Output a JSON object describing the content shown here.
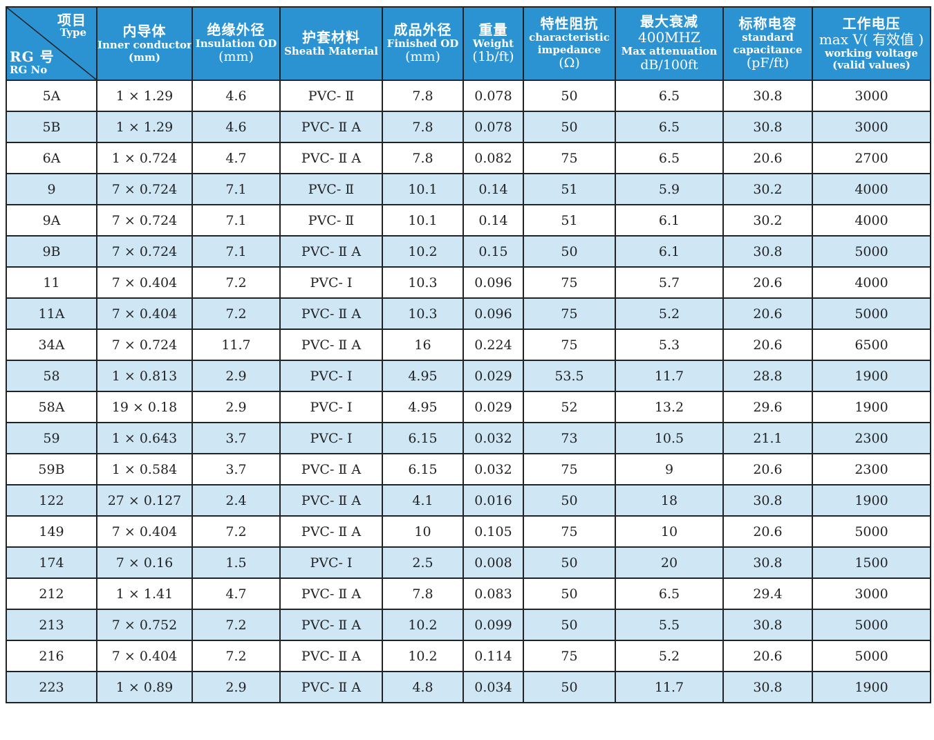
{
  "header": {
    "corner": {
      "item_cn": "项目",
      "item_en": "Type",
      "rg_cn": "RG 号",
      "rg_en": "RG No"
    },
    "inner": {
      "cn": "内导体",
      "en": "Inner conductor",
      "unit": "(mm)"
    },
    "insulation": {
      "cn": "绝缘外径",
      "en": "Insulation OD",
      "unit": "(mm)"
    },
    "sheath": {
      "cn": "护套材料",
      "en": "Sheath Material"
    },
    "finished": {
      "cn": "成品外径",
      "en": "Finished OD",
      "unit": "(mm)"
    },
    "weight": {
      "cn": "重量",
      "en": "Weight",
      "unit": "(1b/ft)"
    },
    "impedance": {
      "cn": "特性阻抗",
      "en1": "characteristic",
      "en2": "impedance",
      "unit": "(Ω)"
    },
    "attenuation": {
      "cn": "最大衰减",
      "freq": "400MHZ",
      "en": "Max attenuation",
      "unit": "dB/100ft"
    },
    "capacitance": {
      "cn": "标称电容",
      "en1": "standard",
      "en2": "capacitance",
      "unit": "(pF/ft)"
    },
    "voltage": {
      "cn": "工作电压",
      "max": "max V( 有效值 )",
      "en1": "working voltage",
      "en2": "(valid values)"
    }
  },
  "rows": [
    [
      "5A",
      "1 × 1.29",
      "4.6",
      "PVC- Ⅱ",
      "7.8",
      "0.078",
      "50",
      "6.5",
      "30.8",
      "3000"
    ],
    [
      "5B",
      "1 × 1.29",
      "4.6",
      "PVC- Ⅱ A",
      "7.8",
      "0.078",
      "50",
      "6.5",
      "30.8",
      "3000"
    ],
    [
      "6A",
      "1 × 0.724",
      "4.7",
      "PVC- Ⅱ A",
      "7.8",
      "0.082",
      "75",
      "6.5",
      "20.6",
      "2700"
    ],
    [
      "9",
      "7 × 0.724",
      "7.1",
      "PVC- Ⅱ",
      "10.1",
      "0.14",
      "51",
      "5.9",
      "30.2",
      "4000"
    ],
    [
      "9A",
      "7 × 0.724",
      "7.1",
      "PVC- Ⅱ",
      "10.1",
      "0.14",
      "51",
      "6.1",
      "30.2",
      "4000"
    ],
    [
      "9B",
      "7 × 0.724",
      "7.1",
      "PVC- Ⅱ A",
      "10.2",
      "0.15",
      "50",
      "6.1",
      "30.8",
      "5000"
    ],
    [
      "11",
      "7 × 0.404",
      "7.2",
      "PVC- Ⅰ",
      "10.3",
      "0.096",
      "75",
      "5.7",
      "20.6",
      "4000"
    ],
    [
      "11A",
      "7 × 0.404",
      "7.2",
      "PVC- Ⅱ A",
      "10.3",
      "0.096",
      "75",
      "5.2",
      "20.6",
      "5000"
    ],
    [
      "34A",
      "7 × 0.724",
      "11.7",
      "PVC- Ⅱ A",
      "16",
      "0.224",
      "75",
      "5.3",
      "20.6",
      "6500"
    ],
    [
      "58",
      "1 × 0.813",
      "2.9",
      "PVC- Ⅰ",
      "4.95",
      "0.029",
      "53.5",
      "11.7",
      "28.8",
      "1900"
    ],
    [
      "58A",
      "19 × 0.18",
      "2.9",
      "PVC- Ⅰ",
      "4.95",
      "0.029",
      "52",
      "13.2",
      "29.6",
      "1900"
    ],
    [
      "59",
      "1 × 0.643",
      "3.7",
      "PVC- Ⅰ",
      "6.15",
      "0.032",
      "73",
      "10.5",
      "21.1",
      "2300"
    ],
    [
      "59B",
      "1 × 0.584",
      "3.7",
      "PVC- Ⅱ A",
      "6.15",
      "0.032",
      "75",
      "9",
      "20.6",
      "2300"
    ],
    [
      "122",
      "27 × 0.127",
      "2.4",
      "PVC- Ⅱ A",
      "4.1",
      "0.016",
      "50",
      "18",
      "30.8",
      "1900"
    ],
    [
      "149",
      "7 × 0.404",
      "7.2",
      "PVC- Ⅱ A",
      "10",
      "0.105",
      "75",
      "10",
      "20.6",
      "5000"
    ],
    [
      "174",
      "7 × 0.16",
      "1.5",
      "PVC- Ⅰ",
      "2.5",
      "0.008",
      "50",
      "20",
      "30.8",
      "1500"
    ],
    [
      "212",
      "1 × 1.41",
      "4.7",
      "PVC- Ⅱ A",
      "7.8",
      "0.083",
      "50",
      "6.5",
      "29.4",
      "3000"
    ],
    [
      "213",
      "7 × 0.752",
      "7.2",
      "PVC- Ⅱ A",
      "10.2",
      "0.099",
      "50",
      "5.5",
      "30.8",
      "5000"
    ],
    [
      "216",
      "7 × 0.404",
      "7.2",
      "PVC- Ⅱ A",
      "10.2",
      "0.114",
      "75",
      "5.2",
      "20.6",
      "5000"
    ],
    [
      "223",
      "1 × 0.89",
      "2.9",
      "PVC- Ⅱ A",
      "4.8",
      "0.034",
      "50",
      "11.7",
      "30.8",
      "1900"
    ]
  ],
  "colors": {
    "header_bg": "#2b93d2",
    "header_text": "#ffffff",
    "stripe": "#cfe6f5",
    "border": "#222222"
  }
}
